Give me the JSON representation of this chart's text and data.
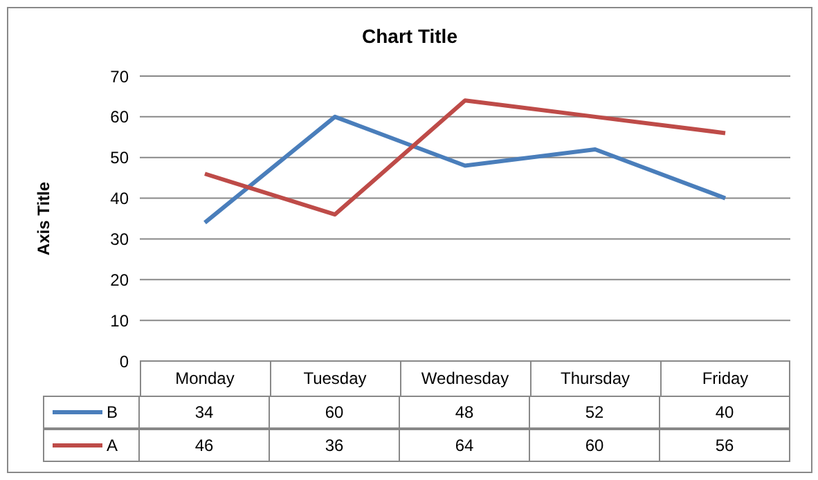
{
  "chart_data": {
    "type": "line",
    "title": "Chart Title",
    "ylabel": "Axis Title",
    "categories": [
      "Monday",
      "Tuesday",
      "Wednesday",
      "Thursday",
      "Friday"
    ],
    "series": [
      {
        "name": "B",
        "color": "#4a7ebb",
        "values": [
          34,
          60,
          48,
          52,
          40
        ]
      },
      {
        "name": "A",
        "color": "#be4b48",
        "values": [
          46,
          36,
          64,
          60,
          56
        ]
      }
    ],
    "ylim": [
      0,
      70
    ],
    "yticks": [
      0,
      10,
      20,
      30,
      40,
      50,
      60,
      70
    ],
    "grid": "y",
    "legend": "bottom",
    "marker": "none",
    "line_style": "solid",
    "data_labels": true
  }
}
